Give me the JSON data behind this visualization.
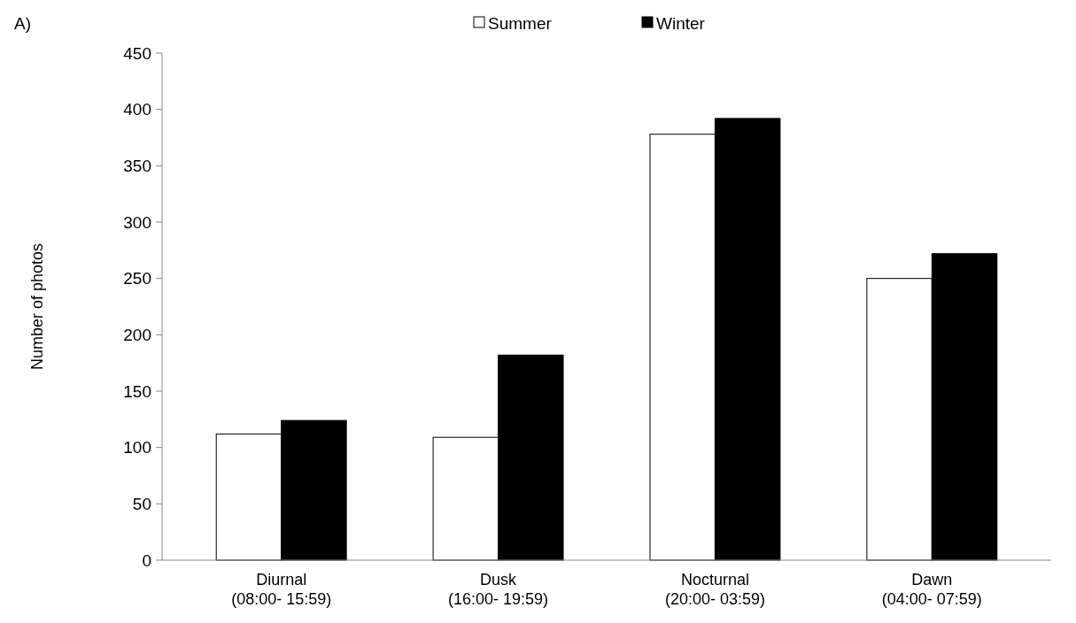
{
  "chart_data": {
    "type": "bar",
    "ylabel": "Number of photos",
    "annotations": [
      "A)"
    ],
    "categories": [
      "Diurnal\n(08:00- 15:59)",
      "Dusk\n(16:00- 19:59)",
      "Nocturnal\n(20:00- 03:59)",
      "Dawn\n(04:00- 07:59)"
    ],
    "series": [
      {
        "name": "Summer",
        "color": "#ffffff",
        "values": [
          112,
          109,
          378,
          250
        ]
      },
      {
        "name": "Winter",
        "color": "#000000",
        "values": [
          124,
          182,
          392,
          272
        ]
      }
    ],
    "ylim": [
      0,
      450
    ],
    "yticks": [
      0,
      50,
      100,
      150,
      200,
      250,
      300,
      350,
      400,
      450
    ],
    "grid": false,
    "legend": "top"
  }
}
